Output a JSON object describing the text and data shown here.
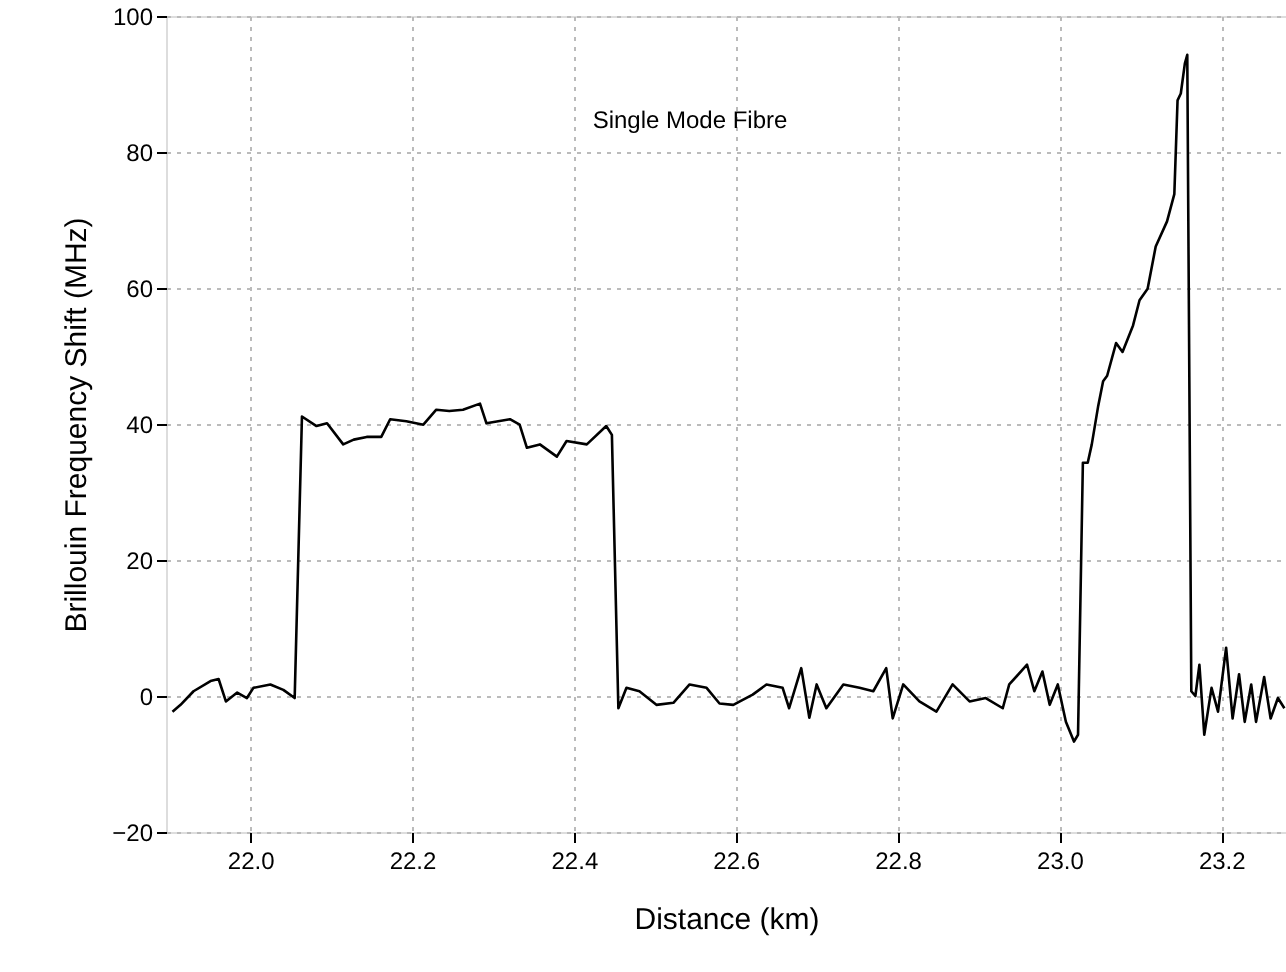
{
  "chart_data": {
    "type": "line",
    "xlabel": "Distance (km)",
    "ylabel": "Brillouin Frequency Shift (MHz)",
    "annotations": [
      "Single Mode Fibre"
    ],
    "xlim": [
      21.896,
      23.28
    ],
    "ylim": [
      -20,
      100
    ],
    "xticks": [
      {
        "value": 22,
        "label": "22.0"
      },
      {
        "value": 22.2,
        "label": "22.2"
      },
      {
        "value": 22.4,
        "label": "22.4"
      },
      {
        "value": 22.6,
        "label": "22.6"
      },
      {
        "value": 22.8,
        "label": "22.8"
      },
      {
        "value": 23,
        "label": "23.0"
      },
      {
        "value": 23.2,
        "label": "23.2"
      }
    ],
    "yticks": [
      -20,
      0,
      20,
      40,
      60,
      80,
      100
    ],
    "grid": true,
    "marker": "none",
    "line_style": "solid",
    "series": [
      {
        "color": "#000000",
        "x": [
          21.904,
          21.914,
          21.93,
          21.951,
          21.961,
          21.97,
          21.984,
          21.996,
          22.004,
          22.025,
          22.041,
          22.055,
          22.064,
          22.082,
          22.095,
          22.115,
          22.128,
          22.144,
          22.162,
          22.173,
          22.193,
          22.214,
          22.23,
          22.246,
          22.263,
          22.284,
          22.292,
          22.321,
          22.333,
          22.342,
          22.358,
          22.379,
          22.391,
          22.416,
          22.44,
          22.447,
          22.455,
          22.465,
          22.481,
          22.502,
          22.523,
          22.543,
          22.564,
          22.58,
          22.597,
          22.621,
          22.638,
          22.658,
          22.666,
          22.681,
          22.691,
          22.7,
          22.712,
          22.733,
          22.753,
          22.77,
          22.786,
          22.794,
          22.807,
          22.827,
          22.848,
          22.868,
          22.889,
          22.909,
          22.93,
          22.938,
          22.96,
          22.969,
          22.979,
          22.988,
          22.998,
          23.008,
          23.018,
          23.023,
          23.029,
          23.035,
          23.04,
          23.048,
          23.054,
          23.059,
          23.07,
          23.078,
          23.091,
          23.099,
          23.109,
          23.119,
          23.133,
          23.142,
          23.146,
          23.15,
          23.155,
          23.158,
          23.163,
          23.168,
          23.173,
          23.179,
          23.188,
          23.196,
          23.206,
          23.214,
          23.222,
          23.229,
          23.237,
          23.243,
          23.253,
          23.261,
          23.27,
          23.278
        ],
        "values": [
          -2.3,
          -1.3,
          0.7,
          2.2,
          2.5,
          -0.8,
          0.5,
          -0.3,
          1.2,
          1.7,
          0.9,
          -0.3,
          41.1,
          39.7,
          40.1,
          37.0,
          37.7,
          38.1,
          38.1,
          40.7,
          40.4,
          39.9,
          42.1,
          41.9,
          42.1,
          43.0,
          40.1,
          40.7,
          39.9,
          36.5,
          37.0,
          35.2,
          37.5,
          37.0,
          39.7,
          38.4,
          -1.8,
          1.2,
          0.7,
          -1.3,
          -1.0,
          1.7,
          1.2,
          -1.1,
          -1.3,
          0.2,
          1.7,
          1.2,
          -1.8,
          4.1,
          -3.2,
          1.7,
          -1.8,
          1.7,
          1.2,
          0.7,
          4.1,
          -3.3,
          1.7,
          -0.8,
          -2.3,
          1.7,
          -0.8,
          -0.3,
          -1.8,
          1.7,
          4.6,
          0.7,
          3.6,
          -1.3,
          1.7,
          -3.8,
          -6.7,
          -5.7,
          34.3,
          34.3,
          37.0,
          42.7,
          46.3,
          47.1,
          51.9,
          50.6,
          54.5,
          58.2,
          59.9,
          66.1,
          69.8,
          73.8,
          87.6,
          88.6,
          93.0,
          94.3,
          0.7,
          0,
          4.6,
          -5.7,
          1.2,
          -2.3,
          7.1,
          -3.3,
          3.2,
          -3.8,
          1.7,
          -3.8,
          2.8,
          -3.3,
          -0.3,
          -1.8
        ]
      }
    ]
  }
}
